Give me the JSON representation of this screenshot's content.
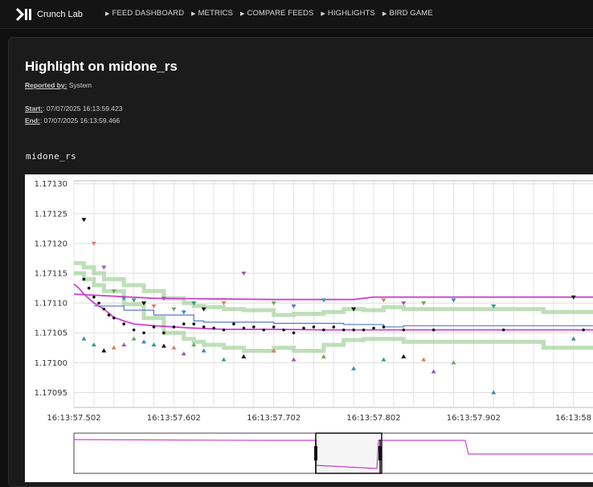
{
  "app": {
    "brand": "Crunch Lab"
  },
  "nav": [
    {
      "label": "FEED DASHBOARD"
    },
    {
      "label": "METRICS"
    },
    {
      "label": "COMPARE FEEDS"
    },
    {
      "label": "HIGHLIGHTS"
    },
    {
      "label": "BIRD GAME"
    }
  ],
  "highlight": {
    "title": "Highlight on midone_rs",
    "reported_by_label": "Reported by:",
    "reported_by": "System",
    "start_label": "Start:",
    "start": ": 07/07/2025 16:13:59.423",
    "end_label": "End:",
    "end": ": 07/07/2025 16:13:59.466",
    "series": "midone_rs"
  },
  "colors": {
    "background": "#0f0f0f",
    "panel": "#1b1b1b",
    "mid": "#cc44cc",
    "band": "#a8d4a0",
    "step": "#5577cc"
  },
  "chart_data": {
    "type": "scatter",
    "ylim": [
      1.170925,
      1.171305
    ],
    "xlim": [
      0,
      0.53
    ],
    "y_ticks": [
      1.1713,
      1.17125,
      1.1712,
      1.17115,
      1.1711,
      1.17105,
      1.171,
      1.17095
    ],
    "y_tick_labels": [
      "1.17130",
      "1.17125",
      "1.17120",
      "1.17115",
      "1.17110",
      "1.17105",
      "1.17100",
      "1.17095"
    ],
    "x_ticks": [
      0,
      0.1,
      0.2,
      0.3,
      0.4,
      0.5
    ],
    "x_tick_labels": [
      "16:13:57.502",
      "16:13:57.602",
      "16:13:57.702",
      "16:13:57.802",
      "16:13:57.902",
      "16:13:58"
    ],
    "grid": true,
    "series": [
      {
        "kind": "line",
        "x": [
          0,
          0.005,
          0.01,
          0.02,
          0.03,
          0.04,
          0.05,
          0.06,
          0.08,
          0.1,
          0.12,
          0.15,
          0.2,
          0.25,
          0.3,
          0.35,
          0.4,
          0.45,
          0.5,
          0.53
        ],
        "y": [
          1.171132,
          1.171125,
          1.171115,
          1.1711,
          1.17109,
          1.171076,
          1.17107,
          1.171065,
          1.171062,
          1.17106,
          1.171058,
          1.171056,
          1.171056,
          1.171055,
          1.171055,
          1.171055,
          1.171055,
          1.171055,
          1.171055,
          1.171055
        ]
      },
      {
        "kind": "line",
        "x": [
          0,
          0.08,
          0.2,
          0.28,
          0.3,
          0.53
        ],
        "y": [
          1.171115,
          1.171108,
          1.171106,
          1.171106,
          1.17111,
          1.17111
        ]
      },
      {
        "kind": "band",
        "x": [
          0,
          0.01,
          0.02,
          0.03,
          0.05,
          0.07,
          0.09,
          0.11,
          0.12,
          0.13,
          0.15,
          0.17,
          0.2,
          0.22,
          0.25,
          0.27,
          0.29,
          0.31,
          0.33,
          0.35,
          0.4,
          0.45,
          0.47,
          0.5,
          0.53
        ],
        "upper": [
          1.171167,
          1.17116,
          1.17115,
          1.17114,
          1.17113,
          1.17112,
          1.171108,
          1.1711,
          1.171095,
          1.171093,
          1.17109,
          1.171088,
          1.17108,
          1.171082,
          1.171085,
          1.17109,
          1.171088,
          1.171093,
          1.17109,
          1.17109,
          1.17109,
          1.17109,
          1.171085,
          1.171085,
          1.171085
        ],
        "lower": [
          1.17115,
          1.17114,
          1.17113,
          1.17112,
          1.171098,
          1.171075,
          1.17105,
          1.17104,
          1.171035,
          1.17103,
          1.171025,
          1.17102,
          1.171025,
          1.17102,
          1.17103,
          1.171038,
          1.17104,
          1.17104,
          1.171035,
          1.171035,
          1.171035,
          1.171035,
          1.171025,
          1.171025,
          1.171025
        ]
      },
      {
        "kind": "step",
        "x": [
          0.02,
          0.05,
          0.08,
          0.12,
          0.13,
          0.2,
          0.27,
          0.31,
          0.33,
          0.53
        ],
        "y": [
          1.171095,
          1.171088,
          1.17108,
          1.17107,
          1.171068,
          1.171066,
          1.171064,
          1.17106,
          1.171062,
          1.171062
        ]
      },
      {
        "kind": "points",
        "x": [
          0.01,
          0.015,
          0.02,
          0.025,
          0.03,
          0.035,
          0.04,
          0.05,
          0.06,
          0.07,
          0.08,
          0.09,
          0.1,
          0.11,
          0.12,
          0.13,
          0.14,
          0.15,
          0.16,
          0.17,
          0.18,
          0.19,
          0.2,
          0.21,
          0.22,
          0.23,
          0.24,
          0.25,
          0.26,
          0.27,
          0.28,
          0.29,
          0.3,
          0.31,
          0.33,
          0.36,
          0.43,
          0.51
        ],
        "y": [
          1.17114,
          1.171125,
          1.17111,
          1.1711,
          1.17109,
          1.17108,
          1.171075,
          1.171065,
          1.171055,
          1.17105,
          1.17106,
          1.17105,
          1.17106,
          1.171065,
          1.171065,
          1.17106,
          1.171058,
          1.171055,
          1.171065,
          1.171058,
          1.17106,
          1.171055,
          1.17106,
          1.171055,
          1.17105,
          1.171058,
          1.17106,
          1.171055,
          1.17106,
          1.171055,
          1.171055,
          1.171055,
          1.171058,
          1.17106,
          1.171055,
          1.171055,
          1.171055,
          1.171055
        ]
      },
      {
        "kind": "up-triangles",
        "x": [
          0.01,
          0.02,
          0.03,
          0.04,
          0.05,
          0.06,
          0.07,
          0.08,
          0.09,
          0.1,
          0.11,
          0.12,
          0.13,
          0.15,
          0.17,
          0.2,
          0.22,
          0.25,
          0.28,
          0.31,
          0.33,
          0.35,
          0.36,
          0.38,
          0.42,
          0.5
        ],
        "y": [
          1.17104,
          1.17103,
          1.17102,
          1.171025,
          1.17103,
          1.17104,
          1.171035,
          1.17103,
          1.171028,
          1.171025,
          1.171015,
          1.17103,
          1.17102,
          1.171005,
          1.17101,
          1.17102,
          1.171005,
          1.17101,
          1.17099,
          1.171005,
          1.17101,
          1.171005,
          1.170985,
          1.171,
          1.17095,
          1.17104
        ]
      },
      {
        "kind": "down-triangles",
        "x": [
          0.01,
          0.02,
          0.03,
          0.04,
          0.05,
          0.06,
          0.07,
          0.08,
          0.09,
          0.1,
          0.11,
          0.12,
          0.13,
          0.15,
          0.17,
          0.2,
          0.22,
          0.25,
          0.28,
          0.31,
          0.33,
          0.35,
          0.38,
          0.42,
          0.5
        ],
        "y": [
          1.17124,
          1.1712,
          1.17116,
          1.17112,
          1.171108,
          1.171105,
          1.1711,
          1.171095,
          1.171108,
          1.17109,
          1.171085,
          1.1711,
          1.17109,
          1.1711,
          1.17115,
          1.1711,
          1.171095,
          1.171105,
          1.17109,
          1.171105,
          1.1711,
          1.1711,
          1.171105,
          1.171095,
          1.17111
        ]
      }
    ]
  },
  "overview": {
    "labels": []
  }
}
